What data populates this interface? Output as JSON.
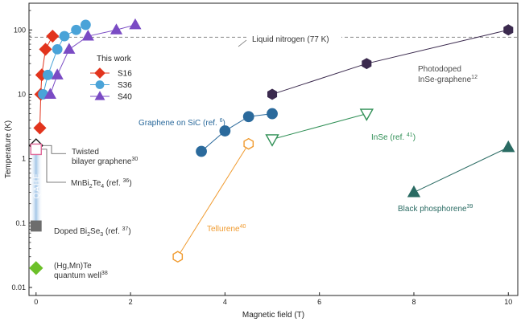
{
  "chart_data": {
    "type": "scatter",
    "xlabel": "Magnetic field (T)",
    "ylabel": "Temperature (K)",
    "xlim": [
      -0.15,
      10.2
    ],
    "ylim": [
      0.0075,
      260
    ],
    "yscale": "log",
    "grid": false,
    "x_ticks": [
      0,
      2,
      4,
      6,
      8,
      10
    ],
    "x_tick_labels": [
      "0",
      "2",
      "4",
      "6",
      "8",
      "10"
    ],
    "y_ticks": [
      0.01,
      0.1,
      1,
      10,
      100
    ],
    "y_tick_labels": [
      "0.01",
      "0.1",
      "1",
      "10",
      "100"
    ],
    "reference_line": {
      "y": 77,
      "label": "Liquid nitrogen (77 K)",
      "color": "#8a8a8a"
    },
    "legend": {
      "title": "This work",
      "entries": [
        {
          "series_index": 0,
          "label": "S16"
        },
        {
          "series_index": 1,
          "label": "S36"
        },
        {
          "series_index": 2,
          "label": "S40"
        }
      ]
    },
    "series": [
      {
        "name": "S16",
        "color": "#e2341d",
        "marker": "diamond",
        "filled": true,
        "connected": true,
        "x": [
          0.08,
          0.1,
          0.12,
          0.2,
          0.35
        ],
        "y": [
          3,
          10,
          20,
          50,
          80
        ]
      },
      {
        "name": "S36",
        "color": "#4aa3d8",
        "marker": "circle",
        "filled": true,
        "connected": true,
        "x": [
          0.15,
          0.25,
          0.45,
          0.6,
          0.85,
          1.05
        ],
        "y": [
          10,
          20,
          50,
          80,
          100,
          120
        ]
      },
      {
        "name": "S40",
        "color": "#7a4bc4",
        "marker": "triangle-up",
        "filled": true,
        "connected": true,
        "x": [
          0.3,
          0.45,
          0.7,
          1.1,
          1.7,
          2.1
        ],
        "y": [
          10,
          20,
          50,
          80,
          100,
          120
        ]
      },
      {
        "name": "Photodoped InSe-graphene",
        "color": "#3b2a4e",
        "marker": "hexagon",
        "filled": true,
        "connected": true,
        "x": [
          5,
          7,
          10
        ],
        "y": [
          10,
          30,
          100
        ]
      },
      {
        "name": "Graphene on SiC",
        "color": "#2b6a9c",
        "marker": "circle",
        "filled": true,
        "connected": true,
        "x": [
          3.5,
          4,
          4.5,
          5
        ],
        "y": [
          1.3,
          2.7,
          4.5,
          5
        ]
      },
      {
        "name": "InSe",
        "color": "#2f8f55",
        "marker": "triangle-down",
        "filled": false,
        "connected": true,
        "x": [
          5,
          7
        ],
        "y": [
          2,
          5
        ]
      },
      {
        "name": "Tellurene",
        "color": "#f09a2e",
        "marker": "hexagon",
        "filled": false,
        "connected": true,
        "x": [
          3,
          4.5
        ],
        "y": [
          0.03,
          1.7
        ]
      },
      {
        "name": "Black phosphorene",
        "color": "#2a6b63",
        "marker": "triangle-up",
        "filled": true,
        "connected": true,
        "x": [
          8,
          10
        ],
        "y": [
          0.3,
          1.5
        ]
      },
      {
        "name": "Twisted bilayer graphene",
        "color": "#1a1a1a",
        "marker": "diamond",
        "filled": false,
        "connected": false,
        "x": [
          0
        ],
        "y": [
          1.6
        ]
      },
      {
        "name": "MnBi2Te4",
        "color": "#e06a9a",
        "marker": "square",
        "filled": false,
        "connected": false,
        "x": [
          0
        ],
        "y": [
          1.4
        ]
      },
      {
        "name": "Doped Bi2Se3",
        "color": "#6d6d6d",
        "marker": "square",
        "filled": true,
        "connected": false,
        "x": [
          0
        ],
        "y": [
          0.09
        ]
      },
      {
        "name": "(Hg,Mn)Te quantum well",
        "color": "#6cc029",
        "marker": "diamond",
        "filled": true,
        "connected": false,
        "x": [
          0
        ],
        "y": [
          0.02
        ]
      }
    ],
    "qahe_band": {
      "label": "QAHE",
      "x": 0,
      "y_range": [
        0.09,
        1.6
      ],
      "color": "#aecbe8"
    },
    "annotations": [
      {
        "lines": [
          {
            "text": "Photodoped"
          },
          {
            "text": "InSe-graphene",
            "sup": "12"
          }
        ],
        "color": "#4a4a4a"
      },
      {
        "lines": [
          {
            "text": "Graphene on SiC (ref. ",
            "sup": "6",
            "tail": ")"
          }
        ],
        "color": "#2b6a9c"
      },
      {
        "lines": [
          {
            "text": "InSe (ref. ",
            "sup": "41",
            "tail": ")"
          }
        ],
        "color": "#2f8f55"
      },
      {
        "lines": [
          {
            "text": "Tellurene",
            "sup": "40"
          }
        ],
        "color": "#f09a2e"
      },
      {
        "lines": [
          {
            "text": "Black phosphorene",
            "sup": "39"
          }
        ],
        "color": "#2a6b63"
      },
      {
        "lines": [
          {
            "text": "Twisted"
          },
          {
            "text": "bilayer graphene",
            "sup": "30"
          }
        ],
        "color": "#333333"
      },
      {
        "lines": [
          {
            "text": "MnBi",
            "sub1": "2",
            "mid": "Te",
            "sub2": "4",
            "tail2": " (ref. ",
            "sup": "36",
            "tail": ")"
          }
        ],
        "color": "#333333"
      },
      {
        "lines": [
          {
            "text": "Doped Bi",
            "sub1": "2",
            "mid": "Se",
            "sub2": "3",
            "tail2": " (ref. ",
            "sup": "37",
            "tail": ")"
          }
        ],
        "color": "#333333"
      },
      {
        "lines": [
          {
            "text": "(Hg,Mn)Te"
          },
          {
            "text": "quantum well",
            "sup": "38"
          }
        ],
        "color": "#333333"
      }
    ]
  }
}
